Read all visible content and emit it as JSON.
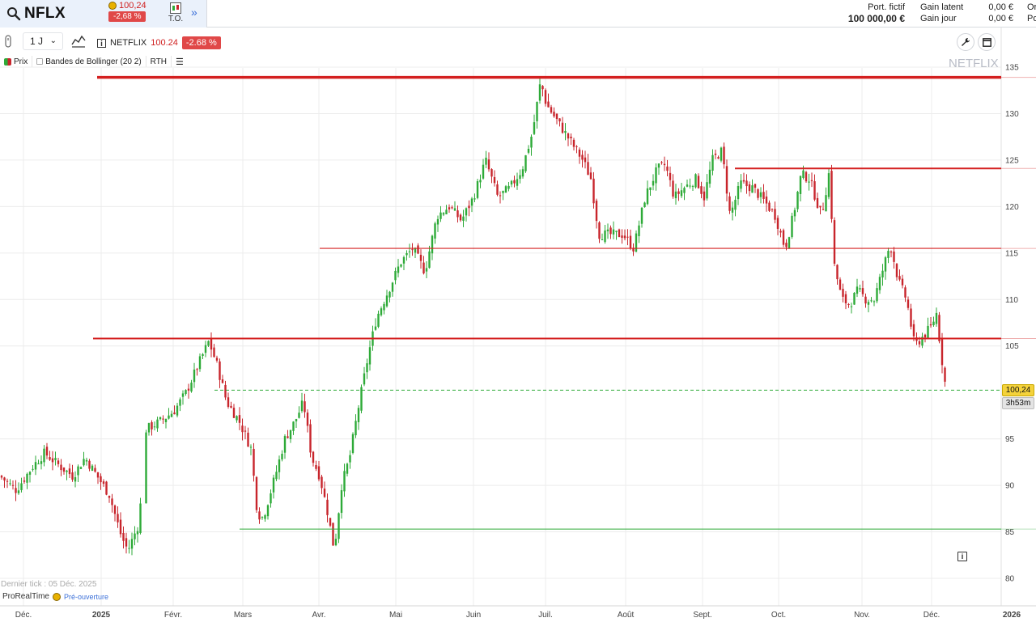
{
  "header": {
    "symbol": "NFLX",
    "price": "100,24",
    "change_pct": "-2,68 %",
    "order_button_label": "T.O.",
    "expand_label": "»",
    "portfolio_label": "Port. fictif",
    "portfolio_value": "100 000,00 €",
    "gain_latent_label": "Gain latent",
    "gain_jour_label": "Gain jour",
    "gain_latent_value": "0,00 €",
    "gain_jour_value": "0,00 €",
    "cut_1": "Or",
    "cut_2": "Po"
  },
  "toolbar": {
    "interval": "1 J",
    "instrument": "NETFLIX",
    "price": "100.24",
    "change_pct": "-2.68 %"
  },
  "legend": {
    "price_label": "Prix",
    "bollinger_label": "Bandes de Bollinger (20 2)",
    "rth_label": "RTH",
    "price_color": "#2eaa38"
  },
  "chart": {
    "watermark": "NETFLIX",
    "last_price_badge": "100,24",
    "countdown_badge": "3h53m",
    "last_tick": "Dernier tick : 05 Déc. 2025",
    "brand": "ProRealTime",
    "market_status": "Pré-ouverture"
  },
  "chart_data": {
    "type": "candlestick",
    "y_ticks": [
      80,
      85,
      90,
      95,
      105,
      110,
      115,
      120,
      125,
      130,
      135
    ],
    "ylim": [
      78.3,
      137.2
    ],
    "x_tick_labels": [
      "Déc.",
      "2025",
      "Févr.",
      "Mars",
      "Avr.",
      "Mai",
      "Juin",
      "Juil.",
      "Août",
      "Sept.",
      "Oct.",
      "Nov.",
      "Déc.",
      "2026"
    ],
    "last_price": 100.24,
    "up_color": "#2eaa38",
    "down_color": "#c8252c",
    "horizontal_levels": [
      {
        "value": 133.9,
        "color": "#d42020"
      },
      {
        "value": 124.1,
        "color": "#d42020"
      },
      {
        "value": 115.5,
        "color": "#d42020"
      },
      {
        "value": 105.8,
        "color": "#d42020"
      },
      {
        "value": 85.3,
        "color": "#2eaa38"
      }
    ]
  }
}
